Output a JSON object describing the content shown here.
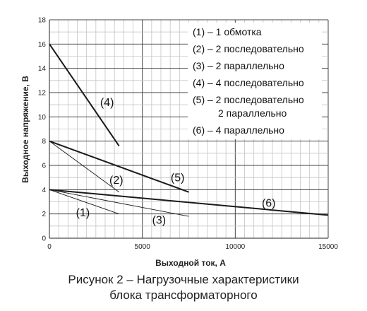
{
  "chart_data": {
    "type": "line",
    "xlabel": "Выходной ток, А",
    "ylabel": "Выходное напряжение, В",
    "xlim": [
      0,
      15000
    ],
    "ylim": [
      0,
      18
    ],
    "x_ticks": [
      "0",
      "5000",
      "10000",
      "15000"
    ],
    "y_ticks": [
      "0",
      "2",
      "4",
      "6",
      "8",
      "10",
      "12",
      "14",
      "16",
      "18"
    ],
    "grid": true,
    "legend_position": "top-right",
    "legend": [
      "(1) – 1 обмотка",
      "(2) – 2 последовательно",
      "(3) – 2 параллельно",
      "(4) – 4 последовательно",
      "(5) – 2 последовательно",
      "2 параллельно",
      "(6) – 4 параллельно"
    ],
    "series": [
      {
        "name": "(1)",
        "x": [
          0,
          3750
        ],
        "y": [
          4,
          2
        ],
        "label_at": [
          1800,
          1.8
        ],
        "width": 0.9
      },
      {
        "name": "(2)",
        "x": [
          0,
          3750
        ],
        "y": [
          8,
          3.8
        ],
        "label_at": [
          3600,
          4.5
        ],
        "width": 0.9
      },
      {
        "name": "(3)",
        "x": [
          0,
          7500
        ],
        "y": [
          4,
          1.8
        ],
        "label_at": [
          5900,
          1.2
        ],
        "width": 0.9
      },
      {
        "name": "(4)",
        "x": [
          0,
          3750
        ],
        "y": [
          16,
          7.6
        ],
        "label_at": [
          3100,
          10.9
        ],
        "width": 2
      },
      {
        "name": "(5)",
        "x": [
          0,
          7500
        ],
        "y": [
          8,
          3.8
        ],
        "label_at": [
          6900,
          4.7
        ],
        "width": 2
      },
      {
        "name": "(6)",
        "x": [
          0,
          15000
        ],
        "y": [
          4,
          1.9
        ],
        "label_at": [
          11800,
          2.6
        ],
        "width": 2
      }
    ]
  },
  "caption": {
    "line1": "Рисунок 2 – Нагрузочные характеристики",
    "line2": "блока трансформаторного"
  }
}
